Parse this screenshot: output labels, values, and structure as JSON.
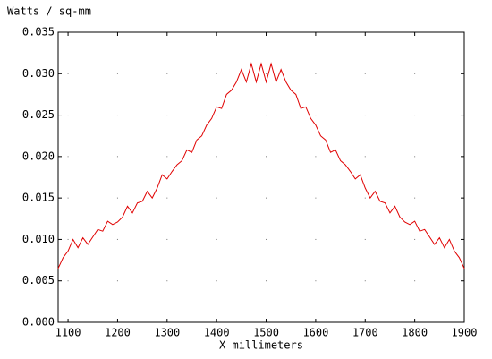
{
  "chart_data": {
    "type": "line",
    "title": "Watts / sq-mm",
    "x_label": "X millimeters",
    "color": "#e00000",
    "grid": true,
    "x": [
      1080,
      1090,
      1100,
      1110,
      1120,
      1130,
      1140,
      1150,
      1160,
      1170,
      1180,
      1190,
      1200,
      1210,
      1220,
      1230,
      1240,
      1250,
      1260,
      1270,
      1280,
      1290,
      1300,
      1310,
      1320,
      1330,
      1340,
      1350,
      1360,
      1370,
      1380,
      1390,
      1400,
      1410,
      1420,
      1430,
      1440,
      1450,
      1460,
      1470,
      1480,
      1490,
      1500,
      1510,
      1520,
      1530,
      1540,
      1550,
      1560,
      1570,
      1580,
      1590,
      1600,
      1610,
      1620,
      1630,
      1640,
      1650,
      1660,
      1670,
      1680,
      1690,
      1700,
      1710,
      1720,
      1730,
      1740,
      1750,
      1760,
      1770,
      1780,
      1790,
      1800,
      1810,
      1820,
      1830,
      1840,
      1850,
      1860,
      1870,
      1880,
      1890,
      1900
    ],
    "values": [
      0.0065,
      0.0078,
      0.0086,
      0.01,
      0.009,
      0.0102,
      0.0094,
      0.0103,
      0.0112,
      0.011,
      0.0122,
      0.0118,
      0.0121,
      0.0127,
      0.014,
      0.0132,
      0.0144,
      0.0146,
      0.0158,
      0.015,
      0.0162,
      0.0178,
      0.0173,
      0.0182,
      0.019,
      0.0195,
      0.0208,
      0.0205,
      0.022,
      0.0225,
      0.0238,
      0.0246,
      0.026,
      0.0258,
      0.0275,
      0.028,
      0.029,
      0.0305,
      0.029,
      0.0312,
      0.029,
      0.0312,
      0.029,
      0.0312,
      0.029,
      0.0305,
      0.029,
      0.028,
      0.0275,
      0.0258,
      0.026,
      0.0246,
      0.0238,
      0.0225,
      0.022,
      0.0205,
      0.0208,
      0.0195,
      0.019,
      0.0182,
      0.0173,
      0.0178,
      0.0162,
      0.015,
      0.0158,
      0.0146,
      0.0144,
      0.0132,
      0.014,
      0.0127,
      0.0121,
      0.0118,
      0.0122,
      0.011,
      0.0112,
      0.0103,
      0.0094,
      0.0102,
      0.009,
      0.01,
      0.0086,
      0.0078,
      0.0065
    ],
    "xlim": [
      1080,
      1900
    ],
    "xticks": [
      1100,
      1200,
      1300,
      1400,
      1500,
      1600,
      1700,
      1800,
      1900
    ],
    "ylim": [
      0,
      0.035
    ],
    "yticks": [
      {
        "value": 0,
        "label": "0.000"
      },
      {
        "value": 0.005,
        "label": "0.005"
      },
      {
        "value": 0.01,
        "label": "0.010"
      },
      {
        "value": 0.015,
        "label": "0.015"
      },
      {
        "value": 0.02,
        "label": "0.020"
      },
      {
        "value": 0.025,
        "label": "0.025"
      },
      {
        "value": 0.03,
        "label": "0.030"
      },
      {
        "value": 0.035,
        "label": "0.035"
      }
    ]
  }
}
